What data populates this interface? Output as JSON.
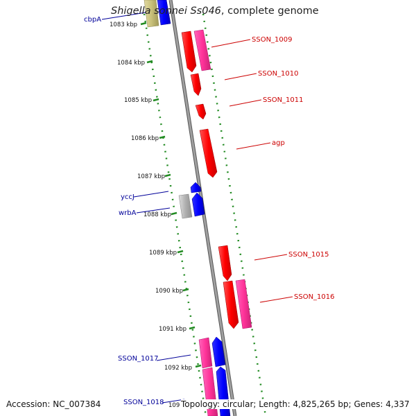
{
  "title": {
    "organism": "Shigella sonnei Ss046",
    "suffix": ", complete genome"
  },
  "footer": {
    "accession": "Accession: NC_007384",
    "topology": "Topology: circular; Length: 4,825,265 bp; Genes: 4,337"
  },
  "ticks": [
    "1083 kbp",
    "1084 kbp",
    "1085 kbp",
    "1086 kbp",
    "1087 kbp",
    "1088 kbp",
    "1089 kbp",
    "1090 kbp",
    "1091 kbp",
    "1092 kbp",
    "109"
  ],
  "colors": {
    "forward": "#ff0000",
    "forward_pink": "#ff3399",
    "reverse": "#0000ff",
    "gray": "#b0b0b0",
    "olive": "#c8c07a",
    "backbone": "#808080",
    "dots": "#228b22",
    "label_red": "#cc0000",
    "label_blue": "#000099"
  },
  "labels": {
    "cbpA": "cbpA",
    "SSON_1009": "SSON_1009",
    "SSON_1010": "SSON_1010",
    "SSON_1011": "SSON_1011",
    "agp": "agp",
    "yccJ": "yccJ",
    "wrbA": "wrbA",
    "SSON_1015": "SSON_1015",
    "SSON_1016": "SSON_1016",
    "SSON_1017": "SSON_1017",
    "SSON_1018": "SSON_1018"
  }
}
